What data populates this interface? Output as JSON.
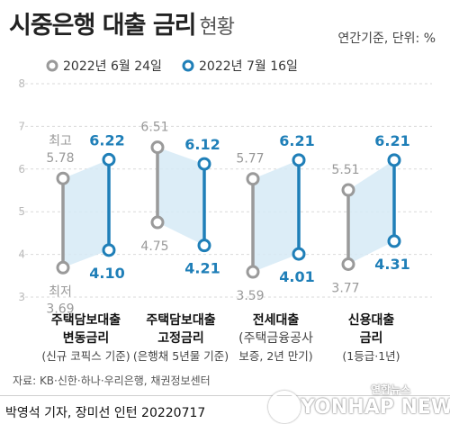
{
  "header": {
    "title": "시중은행 대출 금리",
    "title_sub": "현황",
    "unit_note": "연간기준, 단위: %"
  },
  "colors": {
    "before": "#9a9a9a",
    "after": "#1f7fb8",
    "band": "#d6eaf6",
    "grid": "#d9d9d9"
  },
  "chart_data": {
    "type": "dumbbell",
    "title": "시중은행 대출 금리 현황",
    "ylim": [
      3,
      8
    ],
    "yticks": [
      "3",
      "4",
      "5",
      "6",
      "7",
      "8"
    ],
    "series": [
      {
        "name": "2022년 6월 24일"
      },
      {
        "name": "2022년 7월 16일"
      }
    ],
    "categories": [
      {
        "label_line1": "주택담보대출",
        "label_line2": "변동금리",
        "label_line3": "(신규 코픽스 기준)",
        "before": {
          "high": 5.78,
          "low": 3.69,
          "high_text": "5.78",
          "low_text": "3.69",
          "high_tag": "최고",
          "low_tag": "최저"
        },
        "after": {
          "high": 6.22,
          "low": 4.1,
          "high_text": "6.22",
          "low_text": "4.10"
        }
      },
      {
        "label_line1": "주택담보대출",
        "label_line2": "고정금리",
        "label_line3": "(은행채 5년물 기준)",
        "before": {
          "high": 6.51,
          "low": 4.75,
          "high_text": "6.51",
          "low_text": "4.75"
        },
        "after": {
          "high": 6.12,
          "low": 4.21,
          "high_text": "6.12",
          "low_text": "4.21"
        }
      },
      {
        "label_line1": "전세대출",
        "label_line2": "(주택금융공사",
        "label_line3": "보증, 2년 만기)",
        "before": {
          "high": 5.77,
          "low": 3.59,
          "high_text": "5.77",
          "low_text": "3.59"
        },
        "after": {
          "high": 6.21,
          "low": 4.01,
          "high_text": "6.21",
          "low_text": "4.01"
        }
      },
      {
        "label_line1": "신용대출",
        "label_line2": "금리",
        "label_line3": "(1등급·1년)",
        "before": {
          "high": 5.51,
          "low": 3.77,
          "high_text": "5.51",
          "low_text": "3.77"
        },
        "after": {
          "high": 6.21,
          "low": 4.31,
          "high_text": "6.21",
          "low_text": "4.31"
        }
      }
    ]
  },
  "footer": {
    "source": "자료: KB·신한·하나·우리은행, 채권정보센터",
    "credit": "박영석 기자, 장미선 인턴 20220717",
    "logo_kor": "연합뉴스",
    "logo_eng": "YONHAP NEWS"
  }
}
